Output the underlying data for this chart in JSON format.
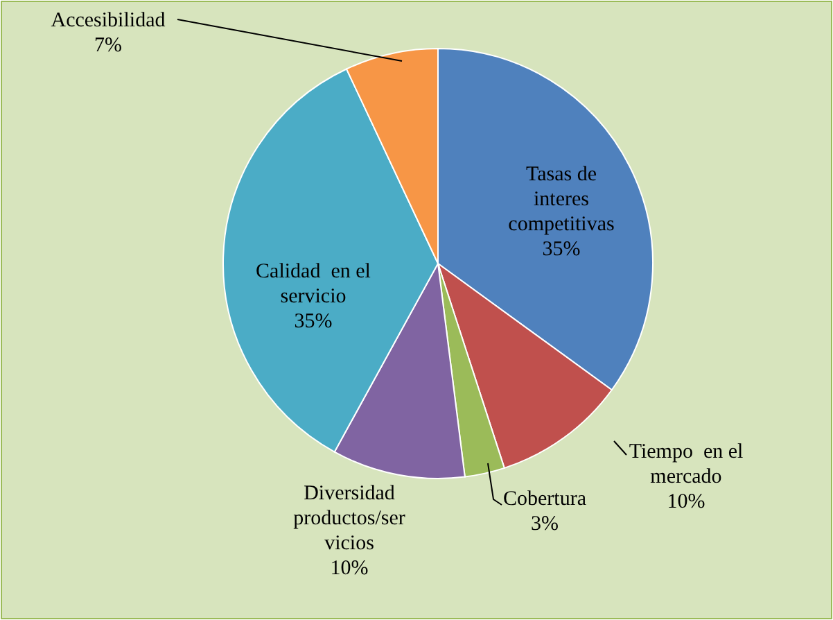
{
  "chart_data": {
    "type": "pie",
    "categories": [
      "Tasas de\ninteres\ncompetitivas",
      "Tiempo  en el\nmercado",
      "Cobertura",
      "Diversidad\nproductos/ser\nvicios",
      "Calidad  en el\nservicio",
      "Accesibilidad"
    ],
    "values": [
      35,
      10,
      3,
      10,
      35,
      7
    ],
    "value_labels": [
      "35%",
      "10%",
      "3%",
      "10%",
      "35%",
      "7%"
    ],
    "colors": [
      "#4f81bd",
      "#c0504d",
      "#9bbb59",
      "#8064a2",
      "#4bacc6",
      "#f79646"
    ],
    "legend": false
  }
}
